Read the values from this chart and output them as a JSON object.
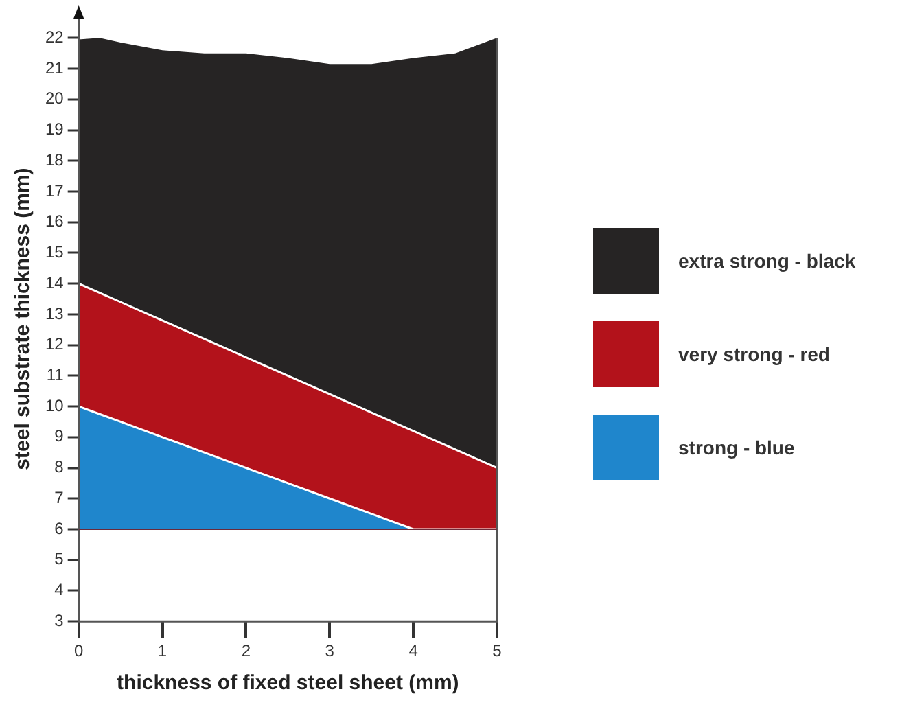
{
  "chart_data": {
    "type": "area",
    "xlabel": "thickness of fixed steel sheet (mm)",
    "ylabel": "steel substrate thickness (mm)",
    "x": [
      0,
      0.25,
      0.5,
      1,
      1.5,
      2,
      2.5,
      3,
      3.5,
      4,
      4.5,
      5
    ],
    "series": [
      {
        "name": "strong - blue",
        "color": "#1f86cc",
        "values": [
          10,
          9.75,
          9.5,
          9,
          8.5,
          8,
          7.5,
          7,
          6.5,
          6,
          6,
          6
        ]
      },
      {
        "name": "very strong - red",
        "color": "#b3121b",
        "values": [
          14,
          13.7,
          13.4,
          12.8,
          12.2,
          11.6,
          11,
          10.4,
          9.8,
          9.2,
          8.6,
          8
        ]
      },
      {
        "name": "extra strong - black",
        "color": "#262424",
        "values": [
          21.95,
          22,
          21.85,
          21.6,
          21.5,
          21.5,
          21.35,
          21.15,
          21.15,
          21.35,
          21.5,
          22
        ]
      }
    ],
    "xlim": [
      0,
      5
    ],
    "xticks": [
      0,
      1,
      2,
      3,
      4,
      5
    ],
    "ylim": [
      3,
      22.7
    ],
    "yticks": [
      3,
      4,
      5,
      6,
      7,
      8,
      9,
      10,
      11,
      12,
      13,
      14,
      15,
      16,
      17,
      18,
      19,
      20,
      21,
      22
    ],
    "ref_lines": [
      {
        "axis": "y",
        "value": 6,
        "color": "#6b2a3a"
      }
    ],
    "grid": false,
    "legend": "right"
  }
}
